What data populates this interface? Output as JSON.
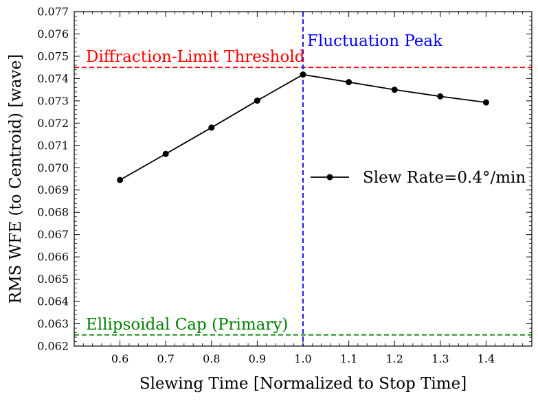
{
  "chart_data": {
    "type": "line",
    "xlabel": "Slewing Time [Normalized to Stop Time]",
    "ylabel": "RMS WFE (to Centroid) [wave]",
    "xlim": [
      0.5,
      1.5
    ],
    "ylim": [
      0.062,
      0.077
    ],
    "xticks": [
      0.6,
      0.7,
      0.8,
      0.9,
      1.0,
      1.1,
      1.2,
      1.3,
      1.4
    ],
    "xtick_labels": [
      "0.6",
      "0.7",
      "0.8",
      "0.9",
      "1.0",
      "1.1",
      "1.2",
      "1.3",
      "1.4"
    ],
    "yticks": [
      0.062,
      0.063,
      0.064,
      0.065,
      0.066,
      0.067,
      0.068,
      0.069,
      0.07,
      0.071,
      0.072,
      0.073,
      0.074,
      0.075,
      0.076,
      0.077
    ],
    "ytick_labels": [
      "0.062",
      "0.063",
      "0.064",
      "0.065",
      "0.066",
      "0.067",
      "0.068",
      "0.069",
      "0.070",
      "0.071",
      "0.072",
      "0.073",
      "0.074",
      "0.075",
      "0.076",
      "0.077"
    ],
    "series": [
      {
        "name": "Slew Rate=0.4°/min",
        "color": "#000000",
        "x": [
          0.6,
          0.7,
          0.8,
          0.9,
          1.0,
          1.1,
          1.2,
          1.3,
          1.4
        ],
        "y": [
          0.06945,
          0.07062,
          0.0718,
          0.07301,
          0.07418,
          0.07384,
          0.0735,
          0.0732,
          0.07293
        ]
      }
    ],
    "reference_lines": [
      {
        "orientation": "horizontal",
        "value": 0.0745,
        "color": "#ff0000",
        "label": "Diffraction-Limit Threshold",
        "label_anchor": "left"
      },
      {
        "orientation": "horizontal",
        "value": 0.0625,
        "color": "#008000",
        "label": "Ellipsoidal Cap (Primary)",
        "label_anchor": "left"
      },
      {
        "orientation": "vertical",
        "value": 1.0,
        "color": "#0000ff",
        "label": "Fluctuation Peak",
        "label_anchor": "top-right"
      }
    ],
    "legend": {
      "position": "center-right",
      "entries": [
        "Slew Rate=0.4°/min"
      ]
    },
    "grid": false
  }
}
